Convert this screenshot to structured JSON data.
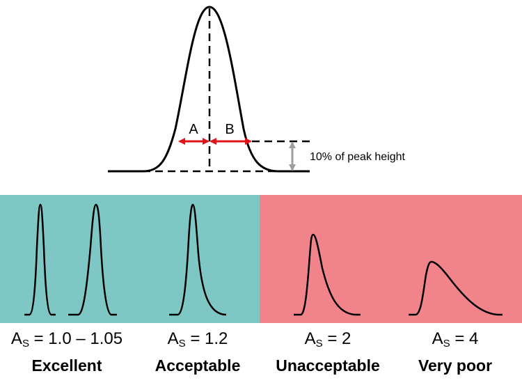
{
  "diagram": {
    "labels": {
      "a": "A",
      "b": "B",
      "height_note": "10% of peak height"
    },
    "colors": {
      "acceptable_bg": "#7fc7c5",
      "unacceptable_bg": "#f0848a",
      "arrow": "#e0151b",
      "gray_arrow": "#9e9e9e"
    }
  },
  "examples": [
    {
      "symbol": "A",
      "subscript": "S",
      "value": "= 1.0 – 1.05",
      "quality": "Excellent"
    },
    {
      "symbol": "A",
      "subscript": "S",
      "value": "= 1.2",
      "quality": "Acceptable"
    },
    {
      "symbol": "A",
      "subscript": "S",
      "value": "= 2",
      "quality": "Unacceptable"
    },
    {
      "symbol": "A",
      "subscript": "S",
      "value": "= 4",
      "quality": "Very poor"
    }
  ]
}
